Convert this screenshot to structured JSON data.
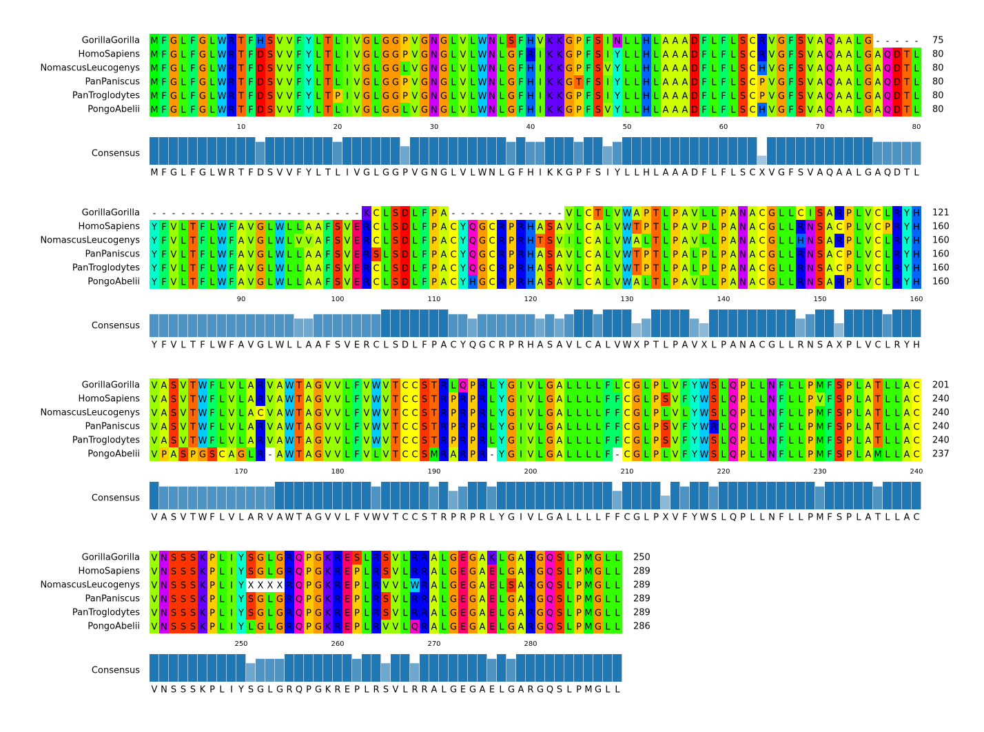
{
  "blocks": [
    {
      "sequences": [
        {
          "name": "GorillaGorilla",
          "residues": "MFGLFGLWRTFHSVVFYLTLIVGLGGPVGNGLVLWNLSFHVKKGPFSINLLHLAAADFLFLSCRVGFSVAQAALG-----",
          "end": 75
        },
        {
          "name": "HomoSapiens",
          "residues": "MFGLFGLWRTFDSVVFYLTLIVGLGGPVGNGLVLWNLGFRIKKGPFSIYLLHLAAADFLFLSCRVGFSVAQAALGAQDTL",
          "end": 80
        },
        {
          "name": "NomascusLeucogenys",
          "residues": "MFGLFGLWRTFDSVVFYLTLIVGLGGLVGNGLVLWNLGFHIKKGPFSVYLLHLAAADFLFLSCHVGFSVAQAALGAQDTL",
          "end": 80
        },
        {
          "name": "PanPaniscus",
          "residues": "MFGLFGLWRTFDSVVFYLTLIVGLGGPVGNGLVLWNLGFHIKKGTFSIYLLHLAAADFLFLSCPVGFSVAQAALGAQDTL",
          "end": 80
        },
        {
          "name": "PanTroglodytes",
          "residues": "MFGLFGLWRTFDSVVFYLTPIVGLGGPVGNGLVLWNLGFHIKKGPFSIYLLHLAAADFLFLSCPVGFSVAQAALGAQDTL",
          "end": 80
        },
        {
          "name": "PongoAbelii",
          "residues": "MFGLFGLWRTFDSVVFYLTLIVGLGGLVGNGLVLWNLGFHIKKGPFSVYLLHLAAADFLFLSCHVGFSVAQAALGAQDTL",
          "end": 80
        }
      ],
      "ticks": [
        10,
        20,
        30,
        40,
        50,
        60,
        70,
        80
      ],
      "consensus_label": "Consensus",
      "conservation": [
        100,
        100,
        100,
        100,
        100,
        100,
        100,
        100,
        100,
        100,
        100,
        83,
        100,
        100,
        100,
        100,
        100,
        100,
        100,
        83,
        100,
        100,
        100,
        100,
        100,
        100,
        67,
        100,
        100,
        100,
        100,
        100,
        100,
        100,
        100,
        100,
        100,
        83,
        100,
        83,
        83,
        100,
        100,
        100,
        83,
        100,
        100,
        67,
        83,
        100,
        100,
        100,
        100,
        100,
        100,
        100,
        100,
        100,
        100,
        100,
        100,
        100,
        100,
        33,
        100,
        100,
        100,
        100,
        100,
        100,
        100,
        100,
        100,
        100,
        100,
        83,
        83,
        83,
        83,
        83
      ],
      "consensus": "MFGLFGLWRTFDSVVFYLTLIVGLGGPVGNGLVLWNLGFHIKKGPFSIYLLHLAAADFLFLSCXVGFSVAQAALGAQDTL"
    },
    {
      "sequences": [
        {
          "name": "GorillaGorilla",
          "residues": "----------------------KCLSDLFPA------------VLCTLVWAPTLPAVLLPANACGLLCISARPLVCLRYH",
          "end": 121
        },
        {
          "name": "HomoSapiens",
          "residues": "YFVLTFLWFAVGLWLLAAFSVERCLSDLFPACYQGCRPRHASAVLCALVWTPTLPAVPLPANACGLLRNSACPLVCPRYH",
          "end": 160
        },
        {
          "name": "NomascusLeucogenys",
          "residues": "YFVLTFLWFAVGLWLVVAFSVERCLSDLFPACYQGCRPRHTSVILCALVWALTLPAVLLPANACGLLHNSARPLVCLRYH",
          "end": 160
        },
        {
          "name": "PanPaniscus",
          "residues": "YFVLTFLWFAVGLWLLAAFSVERSLSDLFPACYQGCRPRHASAVLCALVWTPTLPALPLPANACGLLRNSACPLVCLRYH",
          "end": 160
        },
        {
          "name": "PanTroglodytes",
          "residues": "YFVLTFLWFAVGLWLLAAFSVERCLSDLFPACYQGCRPRHASAVLCALVWTPTLPALPLPANACGLLRNSACPLVCLRYH",
          "end": 160
        },
        {
          "name": "PongoAbelii",
          "residues": "YFVLTFLWFAVGLWLLAAFSVERCLSDLFPACYHGCRPRHASAVLCALVWALTLPAVLLPANACGLLRNSARPLVCLRYH",
          "end": 160
        }
      ],
      "ticks": [
        90,
        100,
        110,
        120,
        130,
        140,
        150,
        160
      ],
      "consensus_label": "Consensus",
      "conservation": [
        83,
        83,
        83,
        83,
        83,
        83,
        83,
        83,
        83,
        83,
        83,
        83,
        83,
        83,
        83,
        67,
        67,
        83,
        83,
        83,
        83,
        83,
        83,
        83,
        100,
        100,
        100,
        100,
        100,
        100,
        100,
        83,
        83,
        67,
        83,
        83,
        83,
        83,
        83,
        83,
        67,
        83,
        67,
        83,
        100,
        100,
        83,
        100,
        100,
        100,
        50,
        67,
        100,
        100,
        100,
        100,
        67,
        50,
        100,
        100,
        100,
        100,
        100,
        100,
        100,
        100,
        100,
        67,
        83,
        100,
        100,
        50,
        100,
        100,
        100,
        100,
        83,
        100,
        100,
        100
      ],
      "consensus": "YFVLTFLWFAVGLWLLAAFSVERCLSDLFPACYQGCRPRHASAVLCALVWXPTLPAVXLPANACGLLRNSAXPLVCLRYH"
    },
    {
      "sequences": [
        {
          "name": "GorillaGorilla",
          "residues": "VASVTWFLVLARVAWTAGVVLFVWVTCCSTRLQPRLYGIVLGALLLLFLCGLPLVFYWSLQPLLNFLLPMFSPLATLLAC",
          "end": 201
        },
        {
          "name": "HomoSapiens",
          "residues": "VASVTWFLVLARVAWTAGVVLFVWVTCCSTRPRPRLYGIVLGALLLLFFCGLPSVFYWSLQPLLNFLLPVFSPLATLLAC",
          "end": 240
        },
        {
          "name": "NomascusLeucogenys",
          "residues": "VASVTWFLVLACVAWTAGVVLFVWVTCCSTRPRPRLYGIVLGALLLLFFCGLPLVLYWSLQPLLNFLLPMFSPLATLLAC",
          "end": 240
        },
        {
          "name": "PanPaniscus",
          "residues": "VASVTWFLVLARVAWTAGVVLFVWVTCCSTRPRPRLYGIVLGALLLLFFCGLPSVFYWRLQPLLNFLLPMFSPLATLLAC",
          "end": 240
        },
        {
          "name": "PanTroglodytes",
          "residues": "VASVTWFLVLARVAWTAGVVLFVWVTCCSTRPRPRLYGIVLGALLLLFFCGLPSVFYWSLQPLLNFLLPMFSPLATLLAC",
          "end": 240
        },
        {
          "name": "PongoAbelii",
          "residues": "VPASPGSCAGLR-AWTAGVVLFVLVTCCSMRARPR-YGIVLGALLLLF-CGLPLVFYWSLQPLLNFLLPMFSPLAMLLAC",
          "end": 237
        }
      ],
      "ticks": [
        170,
        180,
        190,
        200,
        210,
        220,
        230,
        240
      ],
      "consensus_label": "Consensus",
      "conservation": [
        100,
        83,
        83,
        83,
        83,
        83,
        83,
        83,
        83,
        83,
        83,
        83,
        83,
        100,
        100,
        100,
        100,
        100,
        100,
        100,
        100,
        100,
        100,
        83,
        100,
        100,
        100,
        100,
        100,
        83,
        100,
        67,
        83,
        100,
        100,
        83,
        100,
        100,
        100,
        100,
        100,
        100,
        100,
        100,
        100,
        100,
        100,
        100,
        67,
        100,
        100,
        100,
        100,
        50,
        100,
        83,
        100,
        100,
        83,
        100,
        100,
        100,
        100,
        100,
        100,
        100,
        100,
        100,
        100,
        83,
        100,
        100,
        100,
        100,
        100,
        83,
        100,
        100,
        100,
        100
      ],
      "consensus": "VASVTWFLVLARVAWTAGVVLFVWVTCCSTRPRPRLYGIVLGALLLLFFCGLPXVFYWSLQPLLNFLLPMFSPLATLLAC"
    },
    {
      "sequences": [
        {
          "name": "GorillaGorilla",
          "residues": "VNSSSKPLIYSGLGRQPGKRESLRSVLRRALGEGAKLGARGQSLPMGLL",
          "end": 250
        },
        {
          "name": "HomoSapiens",
          "residues": "VNSSSKPLIYSGLGRQPGKREPLRSVLRRALGEGAELGARGQSLPMGLL",
          "end": 289
        },
        {
          "name": "NomascusLeucogenys",
          "residues": "VNSSSKPLIYXXXXRQPGKREPLRVVLWRALGEGAELSARGQSLPMGLL",
          "end": 289
        },
        {
          "name": "PanPaniscus",
          "residues": "VNSSSKPLIYSGLGRQPGKREPLRSVLRRALGEGAELGARGQSLPMGLL",
          "end": 289
        },
        {
          "name": "PanTroglodytes",
          "residues": "VNSSSKPLIYSGLGRQPGKREPLRSVLRRALGEGAELGARGQSLPMGLL",
          "end": 289
        },
        {
          "name": "PongoAbelii",
          "residues": "VNSSSKPLIYLGLGRQPGKREPLRVVLQRALGEGAELGARGQSLPMGLL",
          "end": 286
        }
      ],
      "ticks": [
        250,
        260,
        270,
        280
      ],
      "consensus_label": "Consensus",
      "conservation": [
        100,
        100,
        100,
        100,
        100,
        100,
        100,
        100,
        100,
        100,
        67,
        83,
        83,
        83,
        100,
        100,
        100,
        100,
        100,
        100,
        100,
        83,
        100,
        100,
        67,
        100,
        100,
        67,
        100,
        100,
        100,
        100,
        100,
        100,
        100,
        83,
        100,
        83,
        100,
        100,
        100,
        100,
        100,
        100,
        100,
        100,
        100,
        100,
        100
      ],
      "consensus": "VNSSSKPLIYSGLGRQPGKREPLRSVLRRALGEGAELGARGQSLPMGLL"
    }
  ]
}
